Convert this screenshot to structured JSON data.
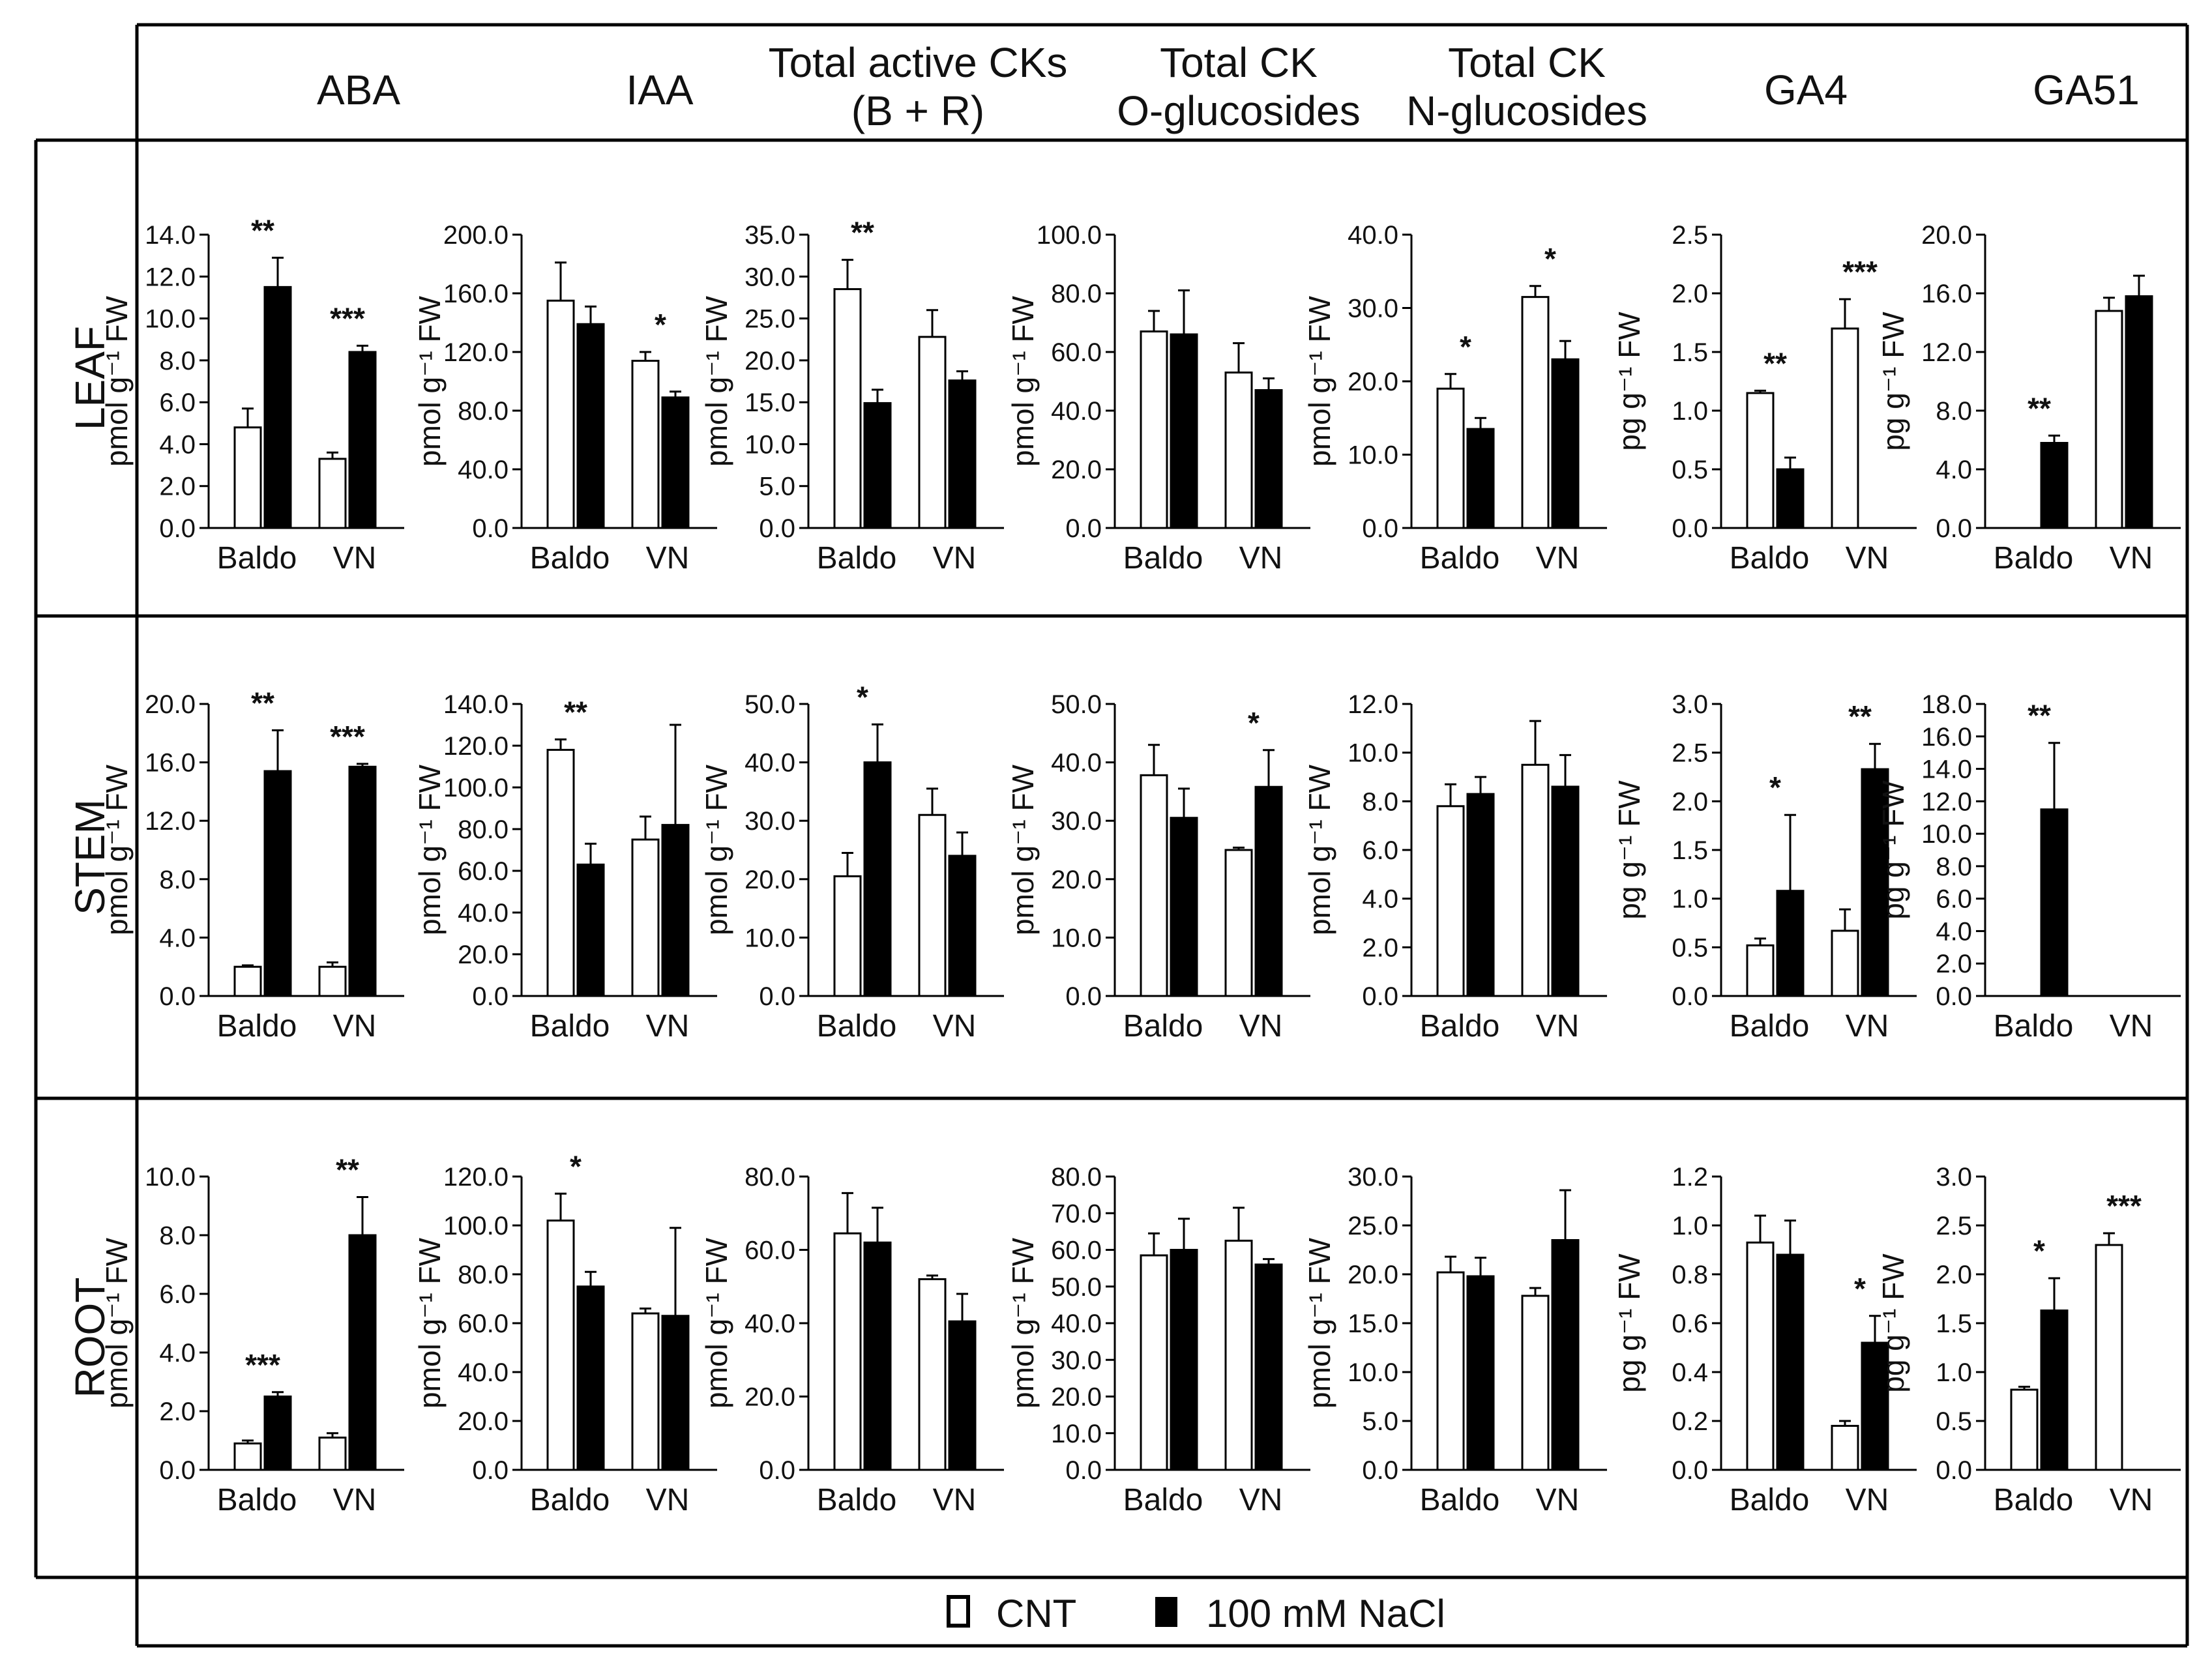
{
  "columns": [
    "ABA",
    "IAA",
    "Total active CKs\n(B + R)",
    "Total CK\nO-glucosides",
    "Total CK\nN-glucosides",
    "GA4",
    "GA51"
  ],
  "rows": [
    "LEAF",
    "STEM",
    "ROOT"
  ],
  "legend": {
    "cnt": "CNT",
    "nacl": "100 mM NaCl"
  },
  "colors": {
    "cnt": "#ffffff",
    "nacl": "#000000",
    "stroke": "#000000"
  },
  "chart_data": [
    {
      "type": "bar",
      "row": "LEAF",
      "column": "ABA",
      "ylabel": "pmol g⁻¹ FW",
      "ylim": [
        0,
        14
      ],
      "yticks": [
        "0.0",
        "2.0",
        "4.0",
        "6.0",
        "8.0",
        "10.0",
        "12.0",
        "14.0"
      ],
      "categories": [
        "Baldo",
        "VN"
      ],
      "series": [
        {
          "name": "CNT",
          "values": [
            4.8,
            3.3
          ],
          "errors": [
            0.9,
            0.3
          ]
        },
        {
          "name": "100 mM NaCl",
          "values": [
            11.5,
            8.4
          ],
          "errors": [
            1.4,
            0.3
          ]
        }
      ],
      "annotations": [
        "**",
        "***"
      ]
    },
    {
      "type": "bar",
      "row": "LEAF",
      "column": "IAA",
      "ylabel": "pmol g⁻¹ FW",
      "ylim": [
        0,
        200
      ],
      "yticks": [
        "0.0",
        "40.0",
        "80.0",
        "120.0",
        "160.0",
        "200.0"
      ],
      "categories": [
        "Baldo",
        "VN"
      ],
      "series": [
        {
          "name": "CNT",
          "values": [
            155,
            114
          ],
          "errors": [
            26,
            6
          ]
        },
        {
          "name": "100 mM NaCl",
          "values": [
            139,
            89
          ],
          "errors": [
            12,
            4
          ]
        }
      ],
      "annotations": [
        "",
        "*"
      ]
    },
    {
      "type": "bar",
      "row": "LEAF",
      "column": "Total active CKs (B + R)",
      "ylabel": "pmol g⁻¹ FW",
      "ylim": [
        0,
        35
      ],
      "yticks": [
        "0.0",
        "5.0",
        "10.0",
        "15.0",
        "20.0",
        "25.0",
        "30.0",
        "35.0"
      ],
      "categories": [
        "Baldo",
        "VN"
      ],
      "series": [
        {
          "name": "CNT",
          "values": [
            28.5,
            22.8
          ],
          "errors": [
            3.5,
            3.2
          ]
        },
        {
          "name": "100 mM NaCl",
          "values": [
            14.9,
            17.6
          ],
          "errors": [
            1.6,
            1.1
          ]
        }
      ],
      "annotations": [
        "**",
        ""
      ]
    },
    {
      "type": "bar",
      "row": "LEAF",
      "column": "Total CK O-glucosides",
      "ylabel": "pmol g⁻¹ FW",
      "ylim": [
        0,
        100
      ],
      "yticks": [
        "0.0",
        "20.0",
        "40.0",
        "60.0",
        "80.0",
        "100.0"
      ],
      "categories": [
        "Baldo",
        "VN"
      ],
      "series": [
        {
          "name": "CNT",
          "values": [
            67,
            53
          ],
          "errors": [
            7,
            10
          ]
        },
        {
          "name": "100 mM NaCl",
          "values": [
            66,
            47
          ],
          "errors": [
            15,
            4
          ]
        }
      ],
      "annotations": [
        "",
        ""
      ]
    },
    {
      "type": "bar",
      "row": "LEAF",
      "column": "Total CK N-glucosides",
      "ylabel": "pmol g⁻¹ FW",
      "ylim": [
        0,
        40
      ],
      "yticks": [
        "0.0",
        "10.0",
        "20.0",
        "30.0",
        "40.0"
      ],
      "categories": [
        "Baldo",
        "VN"
      ],
      "series": [
        {
          "name": "CNT",
          "values": [
            19,
            31.5
          ],
          "errors": [
            2,
            1.5
          ]
        },
        {
          "name": "100 mM NaCl",
          "values": [
            13.5,
            23
          ],
          "errors": [
            1.5,
            2.5
          ]
        }
      ],
      "annotations": [
        "*",
        "*"
      ]
    },
    {
      "type": "bar",
      "row": "LEAF",
      "column": "GA4",
      "ylabel": "pg g⁻¹ FW",
      "ylim": [
        0,
        2.5
      ],
      "yticks": [
        "0.0",
        "0.5",
        "1.0",
        "1.5",
        "2.0",
        "2.5"
      ],
      "categories": [
        "Baldo",
        "VN"
      ],
      "series": [
        {
          "name": "CNT",
          "values": [
            1.15,
            1.7
          ],
          "errors": [
            0.02,
            0.25
          ]
        },
        {
          "name": "100 mM NaCl",
          "values": [
            0.5,
            null
          ],
          "errors": [
            0.1,
            null
          ]
        }
      ],
      "annotations": [
        "**",
        "***"
      ]
    },
    {
      "type": "bar",
      "row": "LEAF",
      "column": "GA51",
      "ylabel": "pg g⁻¹ FW",
      "ylim": [
        0,
        20
      ],
      "yticks": [
        "0.0",
        "4.0",
        "8.0",
        "12.0",
        "16.0",
        "20.0"
      ],
      "categories": [
        "Baldo",
        "VN"
      ],
      "series": [
        {
          "name": "CNT",
          "values": [
            null,
            14.8
          ],
          "errors": [
            null,
            0.9
          ]
        },
        {
          "name": "100 mM NaCl",
          "values": [
            5.8,
            15.8
          ],
          "errors": [
            0.5,
            1.4
          ]
        }
      ],
      "annotations": [
        "**",
        ""
      ]
    },
    {
      "type": "bar",
      "row": "STEM",
      "column": "ABA",
      "ylabel": "pmol g⁻¹ FW",
      "ylim": [
        0,
        20
      ],
      "yticks": [
        "0.0",
        "4.0",
        "8.0",
        "12.0",
        "16.0",
        "20.0"
      ],
      "categories": [
        "Baldo",
        "VN"
      ],
      "series": [
        {
          "name": "CNT",
          "values": [
            2.0,
            2.0
          ],
          "errors": [
            0.1,
            0.3
          ]
        },
        {
          "name": "100 mM NaCl",
          "values": [
            15.4,
            15.7
          ],
          "errors": [
            2.8,
            0.2
          ]
        }
      ],
      "annotations": [
        "**",
        "***"
      ]
    },
    {
      "type": "bar",
      "row": "STEM",
      "column": "IAA",
      "ylabel": "pmol g⁻¹ FW",
      "ylim": [
        0,
        140
      ],
      "yticks": [
        "0.0",
        "20.0",
        "40.0",
        "60.0",
        "80.0",
        "100.0",
        "120.0",
        "140.0"
      ],
      "categories": [
        "Baldo",
        "VN"
      ],
      "series": [
        {
          "name": "CNT",
          "values": [
            118,
            75
          ],
          "errors": [
            5,
            11
          ]
        },
        {
          "name": "100 mM NaCl",
          "values": [
            63,
            82
          ],
          "errors": [
            10,
            48
          ]
        }
      ],
      "annotations": [
        "**",
        ""
      ]
    },
    {
      "type": "bar",
      "row": "STEM",
      "column": "Total active CKs (B + R)",
      "ylabel": "pmol g⁻¹ FW",
      "ylim": [
        0,
        50
      ],
      "yticks": [
        "0.0",
        "10.0",
        "20.0",
        "30.0",
        "40.0",
        "50.0"
      ],
      "categories": [
        "Baldo",
        "VN"
      ],
      "series": [
        {
          "name": "CNT",
          "values": [
            20.5,
            31
          ],
          "errors": [
            4,
            4.5
          ]
        },
        {
          "name": "100 mM NaCl",
          "values": [
            40,
            24
          ],
          "errors": [
            6.5,
            4
          ]
        }
      ],
      "annotations": [
        "*",
        ""
      ]
    },
    {
      "type": "bar",
      "row": "STEM",
      "column": "Total CK O-glucosides",
      "ylabel": "pmol g⁻¹ FW",
      "ylim": [
        0,
        50
      ],
      "yticks": [
        "0.0",
        "10.0",
        "20.0",
        "30.0",
        "40.0",
        "50.0"
      ],
      "categories": [
        "Baldo",
        "VN"
      ],
      "series": [
        {
          "name": "CNT",
          "values": [
            37.8,
            25
          ],
          "errors": [
            5.2,
            0.4
          ]
        },
        {
          "name": "100 mM NaCl",
          "values": [
            30.5,
            35.8
          ],
          "errors": [
            5,
            6.3
          ]
        }
      ],
      "annotations": [
        "",
        "*"
      ]
    },
    {
      "type": "bar",
      "row": "STEM",
      "column": "Total CK N-glucosides",
      "ylabel": "pmol g⁻¹ FW",
      "ylim": [
        0,
        12
      ],
      "yticks": [
        "0.0",
        "2.0",
        "4.0",
        "6.0",
        "8.0",
        "10.0",
        "12.0"
      ],
      "categories": [
        "Baldo",
        "VN"
      ],
      "series": [
        {
          "name": "CNT",
          "values": [
            7.8,
            9.5
          ],
          "errors": [
            0.9,
            1.8
          ]
        },
        {
          "name": "100 mM NaCl",
          "values": [
            8.3,
            8.6
          ],
          "errors": [
            0.7,
            1.3
          ]
        }
      ],
      "annotations": [
        "",
        ""
      ]
    },
    {
      "type": "bar",
      "row": "STEM",
      "column": "GA4",
      "ylabel": "pg g⁻¹ FW",
      "ylim": [
        0,
        3
      ],
      "yticks": [
        "0.0",
        "0.5",
        "1.0",
        "1.5",
        "2.0",
        "2.5",
        "3.0"
      ],
      "categories": [
        "Baldo",
        "VN"
      ],
      "series": [
        {
          "name": "CNT",
          "values": [
            0.52,
            0.67
          ],
          "errors": [
            0.07,
            0.22
          ]
        },
        {
          "name": "100 mM NaCl",
          "values": [
            1.08,
            2.33
          ],
          "errors": [
            0.78,
            0.26
          ]
        }
      ],
      "annotations": [
        "*",
        "**"
      ]
    },
    {
      "type": "bar",
      "row": "STEM",
      "column": "GA51",
      "ylabel": "pg g⁻¹ FW",
      "ylim": [
        0,
        18
      ],
      "yticks": [
        "0.0",
        "2.0",
        "4.0",
        "6.0",
        "8.0",
        "10.0",
        "12.0",
        "14.0",
        "16.0",
        "18.0"
      ],
      "categories": [
        "Baldo",
        "VN"
      ],
      "series": [
        {
          "name": "CNT",
          "values": [
            null,
            null
          ],
          "errors": [
            null,
            null
          ]
        },
        {
          "name": "100 mM NaCl",
          "values": [
            11.5,
            null
          ],
          "errors": [
            4.1,
            null
          ]
        }
      ],
      "annotations": [
        "**",
        ""
      ]
    },
    {
      "type": "bar",
      "row": "ROOT",
      "column": "ABA",
      "ylabel": "pmol g⁻¹ FW",
      "ylim": [
        0,
        10
      ],
      "yticks": [
        "0.0",
        "2.0",
        "4.0",
        "6.0",
        "8.0",
        "10.0"
      ],
      "categories": [
        "Baldo",
        "VN"
      ],
      "series": [
        {
          "name": "CNT",
          "values": [
            0.9,
            1.1
          ],
          "errors": [
            0.1,
            0.15
          ]
        },
        {
          "name": "100 mM NaCl",
          "values": [
            2.5,
            8.0
          ],
          "errors": [
            0.15,
            1.3
          ]
        }
      ],
      "annotations": [
        "***",
        "**"
      ]
    },
    {
      "type": "bar",
      "row": "ROOT",
      "column": "IAA",
      "ylabel": "pmol g⁻¹ FW",
      "ylim": [
        0,
        120
      ],
      "yticks": [
        "0.0",
        "20.0",
        "40.0",
        "60.0",
        "80.0",
        "100.0",
        "120.0"
      ],
      "categories": [
        "Baldo",
        "VN"
      ],
      "series": [
        {
          "name": "CNT",
          "values": [
            102,
            64
          ],
          "errors": [
            11,
            2
          ]
        },
        {
          "name": "100 mM NaCl",
          "values": [
            75,
            63
          ],
          "errors": [
            6,
            36
          ]
        }
      ],
      "annotations": [
        "*",
        ""
      ]
    },
    {
      "type": "bar",
      "row": "ROOT",
      "column": "Total active CKs (B + R)",
      "ylabel": "pmol g⁻¹ FW",
      "ylim": [
        0,
        80
      ],
      "yticks": [
        "0.0",
        "20.0",
        "40.0",
        "60.0",
        "80.0"
      ],
      "categories": [
        "Baldo",
        "VN"
      ],
      "series": [
        {
          "name": "CNT",
          "values": [
            64.5,
            52
          ],
          "errors": [
            11,
            1
          ]
        },
        {
          "name": "100 mM NaCl",
          "values": [
            62,
            40.5
          ],
          "errors": [
            9.5,
            7.5
          ]
        }
      ],
      "annotations": [
        "",
        ""
      ]
    },
    {
      "type": "bar",
      "row": "ROOT",
      "column": "Total CK O-glucosides",
      "ylabel": "pmol g⁻¹ FW",
      "ylim": [
        0,
        80
      ],
      "yticks": [
        "0.0",
        "10.0",
        "20.0",
        "30.0",
        "40.0",
        "50.0",
        "60.0",
        "70.0",
        "80.0"
      ],
      "categories": [
        "Baldo",
        "VN"
      ],
      "series": [
        {
          "name": "CNT",
          "values": [
            58.5,
            62.5
          ],
          "errors": [
            6,
            9
          ]
        },
        {
          "name": "100 mM NaCl",
          "values": [
            60,
            56
          ],
          "errors": [
            8.5,
            1.5
          ]
        }
      ],
      "annotations": [
        "",
        ""
      ]
    },
    {
      "type": "bar",
      "row": "ROOT",
      "column": "Total CK N-glucosides",
      "ylabel": "pmol g⁻¹ FW",
      "ylim": [
        0,
        30
      ],
      "yticks": [
        "0.0",
        "5.0",
        "10.0",
        "15.0",
        "20.0",
        "25.0",
        "30.0"
      ],
      "categories": [
        "Baldo",
        "VN"
      ],
      "series": [
        {
          "name": "CNT",
          "values": [
            20.2,
            17.8
          ],
          "errors": [
            1.6,
            0.8
          ]
        },
        {
          "name": "100 mM NaCl",
          "values": [
            19.8,
            23.5
          ],
          "errors": [
            1.9,
            5.1
          ]
        }
      ],
      "annotations": [
        "",
        ""
      ]
    },
    {
      "type": "bar",
      "row": "ROOT",
      "column": "GA4",
      "ylabel": "pg g⁻¹ FW",
      "ylim": [
        0,
        1.2
      ],
      "yticks": [
        "0.0",
        "0.2",
        "0.4",
        "0.6",
        "0.8",
        "1.0",
        "1.2"
      ],
      "categories": [
        "Baldo",
        "VN"
      ],
      "series": [
        {
          "name": "CNT",
          "values": [
            0.93,
            0.18
          ],
          "errors": [
            0.11,
            0.02
          ]
        },
        {
          "name": "100 mM NaCl",
          "values": [
            0.88,
            0.52
          ],
          "errors": [
            0.14,
            0.11
          ]
        }
      ],
      "annotations": [
        "",
        "*"
      ]
    },
    {
      "type": "bar",
      "row": "ROOT",
      "column": "GA51",
      "ylabel": "pg g⁻¹ FW",
      "ylim": [
        0,
        3
      ],
      "yticks": [
        "0.0",
        "0.5",
        "1.0",
        "1.5",
        "2.0",
        "2.5",
        "3.0"
      ],
      "categories": [
        "Baldo",
        "VN"
      ],
      "series": [
        {
          "name": "CNT",
          "values": [
            0.82,
            2.3
          ],
          "errors": [
            0.03,
            0.12
          ]
        },
        {
          "name": "100 mM NaCl",
          "values": [
            1.63,
            null
          ],
          "errors": [
            0.33,
            null
          ]
        }
      ],
      "annotations": [
        "*",
        "***"
      ]
    }
  ]
}
